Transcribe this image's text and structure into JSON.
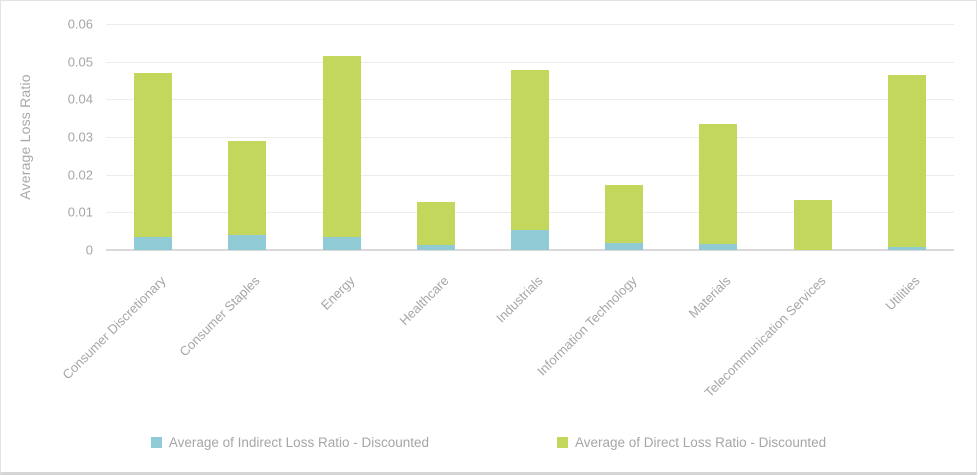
{
  "window": {
    "background": "#ffffff",
    "border_color": "#d9d9d9"
  },
  "colors": {
    "indirect_series": "#8FCAD5",
    "direct_series": "#C2D75B",
    "gridline": "#ECECEC",
    "axis_baseline": "#D9D9D9",
    "axis_text": "#A6A6A6"
  },
  "chart_data": {
    "type": "bar",
    "stacked": true,
    "title": "",
    "xlabel": "",
    "ylabel": "Average Loss Ratio",
    "ylim": [
      0,
      0.06
    ],
    "ytick_step": 0.01,
    "ytick_labels": [
      "0",
      "0.01",
      "0.02",
      "0.03",
      "0.04",
      "0.05",
      "0.06"
    ],
    "grid": true,
    "legend_position": "bottom-center",
    "x_label_rotation_deg": 45,
    "categories": [
      "Consumer Discretionary",
      "Consumer Staples",
      "Energy",
      "Healthcare",
      "Industrials",
      "Information Technology",
      "Materials",
      "Telecommunication Services",
      "Utilities"
    ],
    "series": [
      {
        "name": "Average of Indirect Loss Ratio - Discounted",
        "color": "#8FCAD5",
        "values": [
          0.0034,
          0.004,
          0.0035,
          0.0012,
          0.0053,
          0.0018,
          0.0016,
          0.0,
          0.0008
        ]
      },
      {
        "name": "Average of Direct Loss Ratio - Discounted",
        "color": "#C2D75B",
        "values": [
          0.0435,
          0.0249,
          0.0481,
          0.0116,
          0.0425,
          0.0155,
          0.0319,
          0.0133,
          0.0458
        ]
      }
    ],
    "stacked_totals": [
      0.0469,
      0.0289,
      0.0516,
      0.0128,
      0.0478,
      0.0173,
      0.0335,
      0.0133,
      0.0466
    ]
  }
}
